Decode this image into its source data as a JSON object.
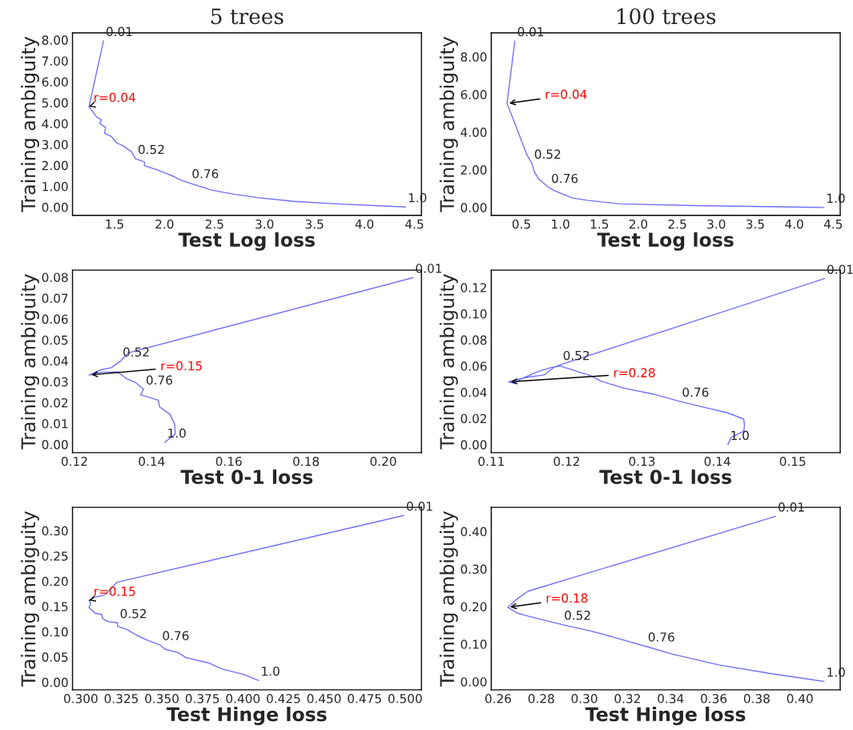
{
  "chart_data": [
    {
      "type": "line",
      "title": "5 trees",
      "xlabel": "Test Log loss",
      "ylabel": "Training ambiguity",
      "grid": false,
      "xlim": [
        1.08,
        4.57
      ],
      "ylim": [
        -0.39,
        8.34
      ],
      "xticks": [
        1.5,
        {
          "value": 2,
          "label": "2.0"
        },
        2.5,
        {
          "value": 3,
          "label": "3.0"
        },
        3.5,
        {
          "value": 4,
          "label": "4.0"
        },
        4.5
      ],
      "yticks": [
        {
          "value": 0,
          "label": "0.00"
        },
        {
          "value": 1,
          "label": "1.00"
        },
        {
          "value": 2,
          "label": "2.00"
        },
        {
          "value": 3,
          "label": "3.00"
        },
        {
          "value": 4,
          "label": "4.00"
        },
        {
          "value": 5,
          "label": "5.00"
        },
        {
          "value": 6,
          "label": "6.00"
        },
        {
          "value": 7,
          "label": "7.00"
        },
        {
          "value": 8,
          "label": "8.00"
        }
      ],
      "series": [
        {
          "color": "#7070ff",
          "x": [
            1.39,
            1.245,
            1.32,
            1.37,
            1.35,
            1.41,
            1.4,
            1.47,
            1.52,
            1.58,
            1.67,
            1.71,
            1.8,
            1.8,
            1.92,
            2.1,
            2.14,
            2.25,
            2.46,
            2.67,
            2.93,
            3.29,
            3.71,
            4.41
          ],
          "values": [
            7.96,
            4.81,
            4.32,
            4.17,
            4.02,
            3.81,
            3.53,
            3.38,
            3.08,
            2.95,
            2.65,
            2.32,
            2.16,
            1.98,
            1.8,
            1.46,
            1.34,
            1.16,
            0.83,
            0.64,
            0.46,
            0.28,
            0.16,
            0.01
          ]
        }
      ],
      "annotations": [
        {
          "text": "0.01",
          "x": 1.39,
          "y": 7.96
        },
        {
          "text": "0.52",
          "x": 1.71,
          "y": 2.32
        },
        {
          "text": "0.76",
          "x": 2.25,
          "y": 1.16
        },
        {
          "text": "1.0",
          "x": 4.41,
          "y": 0.01
        },
        {
          "text": "r=0.04",
          "x": 1.245,
          "y": 4.81
        }
      ]
    },
    {
      "type": "line",
      "title": "100 trees",
      "xlabel": "Test Log loss",
      "ylabel": "Training ambiguity",
      "grid": false,
      "xlim": [
        0.113,
        4.59
      ],
      "ylim": [
        -0.42,
        9.27
      ],
      "xticks": [
        0.5,
        {
          "value": 1,
          "label": "1.0"
        },
        1.5,
        {
          "value": 2,
          "label": "2.0"
        },
        2.5,
        {
          "value": 3,
          "label": "3.0"
        },
        3.5,
        {
          "value": 4,
          "label": "4.0"
        },
        4.5
      ],
      "yticks": [
        {
          "value": 0,
          "label": "0.00"
        },
        {
          "value": 2,
          "label": "2.00"
        },
        {
          "value": 4,
          "label": "4.00"
        },
        {
          "value": 6,
          "label": "6.00"
        },
        {
          "value": 8,
          "label": "8.00"
        }
      ],
      "series": [
        {
          "color": "#7070ff",
          "x": [
            0.416,
            0.315,
            0.416,
            0.517,
            0.567,
            0.634,
            0.668,
            0.718,
            0.853,
            0.92,
            1.155,
            1.357,
            1.76,
            2.7,
            4.38
          ],
          "values": [
            8.84,
            5.52,
            4.46,
            3.37,
            2.82,
            2.34,
            1.87,
            1.53,
            1.05,
            0.89,
            0.5,
            0.37,
            0.19,
            0.1,
            0.0
          ]
        }
      ],
      "annotations": [
        {
          "text": "0.01",
          "x": 0.416,
          "y": 8.84
        },
        {
          "text": "0.52",
          "x": 0.634,
          "y": 2.34
        },
        {
          "text": "0.76",
          "x": 0.853,
          "y": 1.05
        },
        {
          "text": "1.0",
          "x": 4.38,
          "y": 0.0
        },
        {
          "text": "r=0.04",
          "x": 0.315,
          "y": 5.52
        }
      ]
    },
    {
      "type": "line",
      "xlabel": "Test 0-1 loss",
      "ylabel": "Training ambiguity",
      "grid": false,
      "xlim": [
        0.1195,
        0.2099
      ],
      "ylim": [
        -0.0039,
        0.0834
      ],
      "xticks": [
        0.12,
        0.14,
        0.16,
        0.18,
        {
          "value": 0.2,
          "label": "0.20"
        }
      ],
      "yticks": [
        {
          "value": 0,
          "label": "0.00"
        },
        0.01,
        0.02,
        0.03,
        0.04,
        0.05,
        0.06,
        0.07,
        0.08
      ],
      "series": [
        {
          "color": "#7070ff",
          "x": [
            0.2077,
            0.1339,
            0.1319,
            0.1295,
            0.1265,
            0.1238,
            0.1268,
            0.1312,
            0.1334,
            0.1359,
            0.1379,
            0.1371,
            0.1417,
            0.1421,
            0.1448,
            0.146,
            0.1461,
            0.1434
          ],
          "values": [
            0.0798,
            0.0438,
            0.0398,
            0.0367,
            0.0355,
            0.0332,
            0.0345,
            0.0347,
            0.0316,
            0.0295,
            0.0264,
            0.0238,
            0.0212,
            0.0179,
            0.0143,
            0.0095,
            0.005,
            0.001
          ]
        }
      ],
      "annotations": [
        {
          "text": "0.01",
          "x": 0.2077,
          "y": 0.0798
        },
        {
          "text": "0.52",
          "x": 0.1319,
          "y": 0.0398
        },
        {
          "text": "0.76",
          "x": 0.1379,
          "y": 0.0264
        },
        {
          "text": "1.0",
          "x": 0.1434,
          "y": 0.001
        },
        {
          "text": "r=0.15",
          "x": 0.1238,
          "y": 0.0332
        }
      ]
    },
    {
      "type": "line",
      "xlabel": "Test 0-1 loss",
      "ylabel": "Training ambiguity",
      "grid": false,
      "xlim": [
        0.11,
        0.1563
      ],
      "ylim": [
        -0.0061,
        0.1333
      ],
      "xticks": [
        0.11,
        0.12,
        0.13,
        0.14,
        0.15
      ],
      "yticks": [
        {
          "value": 0,
          "label": "0.00"
        },
        0.02,
        0.04,
        0.06,
        0.08,
        {
          "value": 0.1,
          "label": "0.10"
        },
        0.12
      ],
      "series": [
        {
          "color": "#7070ff",
          "x": [
            0.1542,
            0.1192,
            0.1183,
            0.117,
            0.115,
            0.1137,
            0.1128,
            0.1123,
            0.1131,
            0.1138,
            0.1159,
            0.118,
            0.1192,
            0.1232,
            0.1246,
            0.1277,
            0.1316,
            0.135,
            0.1385,
            0.1413,
            0.1435,
            0.1436,
            0.1435,
            0.1418,
            0.1414
          ],
          "values": [
            0.1268,
            0.061,
            0.059,
            0.0532,
            0.0516,
            0.0502,
            0.0487,
            0.0479,
            0.0467,
            0.0498,
            0.0551,
            0.059,
            0.06,
            0.0526,
            0.0483,
            0.043,
            0.0385,
            0.033,
            0.0281,
            0.0244,
            0.0195,
            0.015,
            0.0102,
            0.0053,
            0.0
          ]
        }
      ],
      "annotations": [
        {
          "text": "0.01",
          "x": 0.1542,
          "y": 0.1268
        },
        {
          "text": "0.52",
          "x": 0.1192,
          "y": 0.061
        },
        {
          "text": "0.76",
          "x": 0.135,
          "y": 0.033
        },
        {
          "text": "1.0",
          "x": 0.1414,
          "y": 0.0
        },
        {
          "text": "r=0.28",
          "x": 0.1123,
          "y": 0.0479
        }
      ]
    },
    {
      "type": "line",
      "xlabel": "Test Hinge loss",
      "ylabel": "Training ambiguity",
      "grid": false,
      "xlim": [
        0.2949,
        0.5101
      ],
      "ylim": [
        -0.0151,
        0.3462
      ],
      "xticks": [
        {
          "value": 0.3,
          "label": "0.300"
        },
        0.325,
        {
          "value": 0.35,
          "label": "0.350"
        },
        0.375,
        {
          "value": 0.4,
          "label": "0.400"
        },
        0.425,
        {
          "value": 0.45,
          "label": "0.450"
        },
        0.475,
        {
          "value": 0.5,
          "label": "0.500"
        }
      ],
      "yticks": [
        {
          "value": 0,
          "label": "0.00"
        },
        0.05,
        {
          "value": 0.1,
          "label": "0.10"
        },
        0.15,
        {
          "value": 0.2,
          "label": "0.20"
        },
        0.25,
        {
          "value": 0.3,
          "label": "0.30"
        }
      ],
      "series": [
        {
          "color": "#7070ff",
          "x": [
            0.4992,
            0.3224,
            0.3149,
            0.308,
            0.3051,
            0.3061,
            0.3051,
            0.3088,
            0.3128,
            0.3136,
            0.3168,
            0.3227,
            0.3227,
            0.3288,
            0.3344,
            0.3416,
            0.3488,
            0.352,
            0.36,
            0.3648,
            0.3784,
            0.3872,
            0.4008,
            0.4096
          ],
          "values": [
            0.3302,
            0.198,
            0.1729,
            0.1678,
            0.1618,
            0.1568,
            0.1477,
            0.1367,
            0.1342,
            0.1256,
            0.1201,
            0.1176,
            0.1106,
            0.104,
            0.093,
            0.0824,
            0.0739,
            0.0653,
            0.0588,
            0.0487,
            0.0387,
            0.0261,
            0.0151,
            0.0035
          ]
        }
      ],
      "annotations": [
        {
          "text": "0.01",
          "x": 0.4992,
          "y": 0.3302
        },
        {
          "text": "0.52",
          "x": 0.3227,
          "y": 0.1176
        },
        {
          "text": "0.76",
          "x": 0.3488,
          "y": 0.0739
        },
        {
          "text": "1.0",
          "x": 0.4096,
          "y": 0.0035
        },
        {
          "text": "r=0.15",
          "x": 0.3051,
          "y": 0.1618
        }
      ]
    },
    {
      "type": "line",
      "xlabel": "Test Hinge loss",
      "ylabel": "Training ambiguity",
      "grid": false,
      "xlim": [
        0.2568,
        0.4187
      ],
      "ylim": [
        -0.0218,
        0.4642
      ],
      "xticks": [
        0.26,
        0.28,
        {
          "value": 0.3,
          "label": "0.30"
        },
        0.32,
        0.34,
        0.36,
        0.38,
        {
          "value": 0.4,
          "label": "0.40"
        }
      ],
      "yticks": [
        {
          "value": 0,
          "label": "0.00"
        },
        {
          "value": 0.1,
          "label": "0.10"
        },
        {
          "value": 0.2,
          "label": "0.20"
        },
        {
          "value": 0.3,
          "label": "0.30"
        },
        {
          "value": 0.4,
          "label": "0.40"
        }
      ],
      "series": [
        {
          "color": "#7070ff",
          "x": [
            0.3887,
            0.2739,
            0.2688,
            0.2645,
            0.2688,
            0.2742,
            0.2895,
            0.3029,
            0.3138,
            0.3284,
            0.3406,
            0.3625,
            0.3869,
            0.4112
          ],
          "values": [
            0.4403,
            0.241,
            0.2205,
            0.198,
            0.1829,
            0.1741,
            0.1522,
            0.1352,
            0.1181,
            0.0942,
            0.0737,
            0.0444,
            0.0212,
            0.0007
          ]
        }
      ],
      "annotations": [
        {
          "text": "0.01",
          "x": 0.3887,
          "y": 0.4403
        },
        {
          "text": "0.52",
          "x": 0.2895,
          "y": 0.1522
        },
        {
          "text": "0.76",
          "x": 0.3284,
          "y": 0.0942
        },
        {
          "text": "1.0",
          "x": 0.4112,
          "y": 0.0007
        },
        {
          "text": "r=0.18",
          "x": 0.2645,
          "y": 0.198
        }
      ]
    }
  ]
}
